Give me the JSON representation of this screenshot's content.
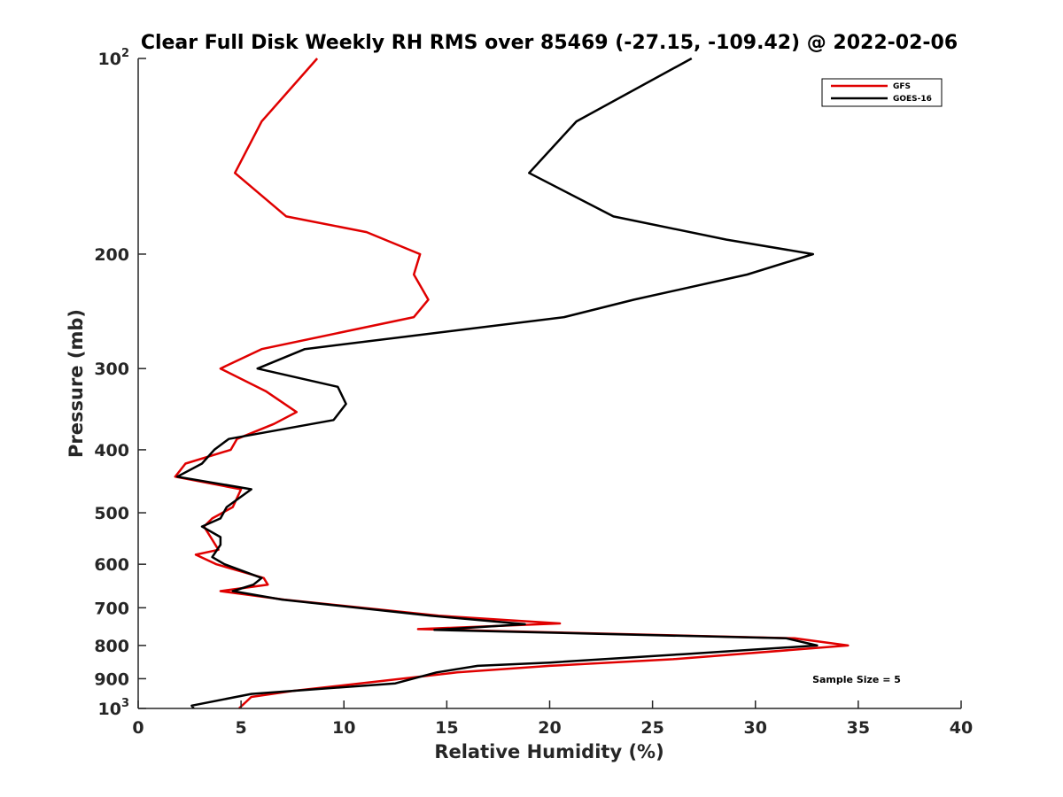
{
  "chart_data": {
    "type": "line",
    "title": "Clear Full Disk Weekly RH RMS over 85469 (-27.15, -109.42) @ 2022-02-06",
    "xlabel": "Relative Humidity (%)",
    "ylabel": "Pressure (mb)",
    "xlim": [
      0,
      40
    ],
    "ylim": [
      100,
      1000
    ],
    "yscale": "log",
    "y_reversed": true,
    "x_ticks": [
      "0",
      "5",
      "10",
      "15",
      "20",
      "25",
      "30",
      "35",
      "40"
    ],
    "y_ticks": [
      {
        "value": 100,
        "label": "10",
        "sup": "2"
      },
      {
        "value": 200,
        "label": "200",
        "sup": ""
      },
      {
        "value": 300,
        "label": "300",
        "sup": ""
      },
      {
        "value": 400,
        "label": "400",
        "sup": ""
      },
      {
        "value": 500,
        "label": "500",
        "sup": ""
      },
      {
        "value": 600,
        "label": "600",
        "sup": ""
      },
      {
        "value": 700,
        "label": "700",
        "sup": ""
      },
      {
        "value": 800,
        "label": "800",
        "sup": ""
      },
      {
        "value": 900,
        "label": "900",
        "sup": ""
      },
      {
        "value": 1000,
        "label": "10",
        "sup": "3"
      }
    ],
    "grid": false,
    "legend_position": "top-right",
    "series": [
      {
        "name": "GFS",
        "color": "#e00000",
        "points": [
          {
            "rh": 8.7,
            "p": 100
          },
          {
            "rh": 6.0,
            "p": 125
          },
          {
            "rh": 4.7,
            "p": 150
          },
          {
            "rh": 7.2,
            "p": 175
          },
          {
            "rh": 11.1,
            "p": 185
          },
          {
            "rh": 13.7,
            "p": 200
          },
          {
            "rh": 13.4,
            "p": 215
          },
          {
            "rh": 14.1,
            "p": 235
          },
          {
            "rh": 13.4,
            "p": 250
          },
          {
            "rh": 6.0,
            "p": 280
          },
          {
            "rh": 4.0,
            "p": 300
          },
          {
            "rh": 6.2,
            "p": 325
          },
          {
            "rh": 7.7,
            "p": 350
          },
          {
            "rh": 6.6,
            "p": 365
          },
          {
            "rh": 4.8,
            "p": 385
          },
          {
            "rh": 4.5,
            "p": 400
          },
          {
            "rh": 2.3,
            "p": 420
          },
          {
            "rh": 1.8,
            "p": 440
          },
          {
            "rh": 5.0,
            "p": 460
          },
          {
            "rh": 4.6,
            "p": 490
          },
          {
            "rh": 3.6,
            "p": 510
          },
          {
            "rh": 3.2,
            "p": 525
          },
          {
            "rh": 3.6,
            "p": 550
          },
          {
            "rh": 3.9,
            "p": 570
          },
          {
            "rh": 2.8,
            "p": 580
          },
          {
            "rh": 3.8,
            "p": 600
          },
          {
            "rh": 6.1,
            "p": 630
          },
          {
            "rh": 6.3,
            "p": 645
          },
          {
            "rh": 4.0,
            "p": 660
          },
          {
            "rh": 7.1,
            "p": 680
          },
          {
            "rh": 14.6,
            "p": 720
          },
          {
            "rh": 20.5,
            "p": 740
          },
          {
            "rh": 13.6,
            "p": 755
          },
          {
            "rh": 31.9,
            "p": 780
          },
          {
            "rh": 34.5,
            "p": 800
          },
          {
            "rh": 26.0,
            "p": 840
          },
          {
            "rh": 20.0,
            "p": 860
          },
          {
            "rh": 15.5,
            "p": 880
          },
          {
            "rh": 11.5,
            "p": 910
          },
          {
            "rh": 7.5,
            "p": 940
          },
          {
            "rh": 5.5,
            "p": 960
          },
          {
            "rh": 4.9,
            "p": 1000
          }
        ]
      },
      {
        "name": "GOES-16",
        "color": "#000000",
        "points": [
          {
            "rh": 26.9,
            "p": 100
          },
          {
            "rh": 21.3,
            "p": 125
          },
          {
            "rh": 19.0,
            "p": 150
          },
          {
            "rh": 23.1,
            "p": 175
          },
          {
            "rh": 28.6,
            "p": 190
          },
          {
            "rh": 32.8,
            "p": 200
          },
          {
            "rh": 29.6,
            "p": 215
          },
          {
            "rh": 24.1,
            "p": 235
          },
          {
            "rh": 20.7,
            "p": 250
          },
          {
            "rh": 8.1,
            "p": 280
          },
          {
            "rh": 5.8,
            "p": 300
          },
          {
            "rh": 9.7,
            "p": 320
          },
          {
            "rh": 10.1,
            "p": 340
          },
          {
            "rh": 9.5,
            "p": 360
          },
          {
            "rh": 4.4,
            "p": 385
          },
          {
            "rh": 3.7,
            "p": 400
          },
          {
            "rh": 3.1,
            "p": 420
          },
          {
            "rh": 1.9,
            "p": 440
          },
          {
            "rh": 5.5,
            "p": 460
          },
          {
            "rh": 4.3,
            "p": 490
          },
          {
            "rh": 4.0,
            "p": 510
          },
          {
            "rh": 3.1,
            "p": 525
          },
          {
            "rh": 4.0,
            "p": 545
          },
          {
            "rh": 4.0,
            "p": 560
          },
          {
            "rh": 3.6,
            "p": 585
          },
          {
            "rh": 4.2,
            "p": 600
          },
          {
            "rh": 6.0,
            "p": 630
          },
          {
            "rh": 5.6,
            "p": 645
          },
          {
            "rh": 4.6,
            "p": 660
          },
          {
            "rh": 7.0,
            "p": 680
          },
          {
            "rh": 14.2,
            "p": 720
          },
          {
            "rh": 18.8,
            "p": 742
          },
          {
            "rh": 14.4,
            "p": 757
          },
          {
            "rh": 31.5,
            "p": 780
          },
          {
            "rh": 33.0,
            "p": 800
          },
          {
            "rh": 26.5,
            "p": 825
          },
          {
            "rh": 20.0,
            "p": 850
          },
          {
            "rh": 16.5,
            "p": 860
          },
          {
            "rh": 14.5,
            "p": 880
          },
          {
            "rh": 12.5,
            "p": 915
          },
          {
            "rh": 5.5,
            "p": 950
          },
          {
            "rh": 2.6,
            "p": 990
          },
          {
            "rh": 2.7,
            "p": 1000
          }
        ]
      }
    ],
    "annotations": [
      "Sample Size = 5"
    ]
  }
}
